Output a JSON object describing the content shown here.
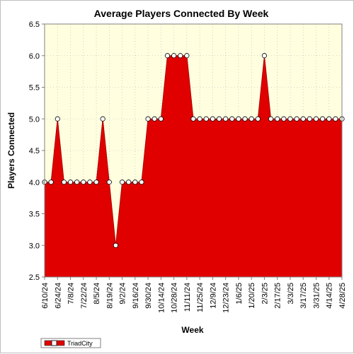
{
  "chart_data": {
    "type": "area",
    "title": "Average Players Connected By Week",
    "xlabel": "Week",
    "ylabel": "Players Connected",
    "ylim": [
      2.5,
      6.5
    ],
    "yticks": [
      "2.5",
      "3.0",
      "3.5",
      "4.0",
      "4.5",
      "5.0",
      "5.5",
      "6.0",
      "6.5"
    ],
    "grid": true,
    "legend_position": "bottom-left",
    "x_tick_labels": [
      "6/10/24",
      "6/24/24",
      "7/8/24",
      "7/22/24",
      "8/5/24",
      "8/19/24",
      "9/2/24",
      "9/16/24",
      "9/30/24",
      "10/14/24",
      "10/28/24",
      "11/11/24",
      "11/25/24",
      "12/9/24",
      "12/23/24",
      "1/6/25",
      "1/20/25",
      "2/3/25",
      "2/17/25",
      "3/3/25",
      "3/17/25",
      "3/31/25",
      "4/14/25",
      "4/28/25"
    ],
    "x": [
      "6/10/24",
      "6/17/24",
      "6/24/24",
      "7/1/24",
      "7/8/24",
      "7/15/24",
      "7/22/24",
      "7/29/24",
      "8/5/24",
      "8/12/24",
      "8/19/24",
      "8/26/24",
      "9/2/24",
      "9/9/24",
      "9/16/24",
      "9/23/24",
      "9/30/24",
      "10/7/24",
      "10/14/24",
      "10/21/24",
      "10/28/24",
      "11/4/24",
      "11/11/24",
      "11/18/24",
      "11/25/24",
      "12/2/24",
      "12/9/24",
      "12/16/24",
      "12/23/24",
      "12/30/24",
      "1/6/25",
      "1/13/25",
      "1/20/25",
      "1/27/25",
      "2/3/25",
      "2/10/25",
      "2/17/25",
      "2/24/25",
      "3/3/25",
      "3/10/25",
      "3/17/25",
      "3/24/25",
      "3/31/25",
      "4/7/25",
      "4/14/25",
      "4/21/25",
      "4/28/25"
    ],
    "series": [
      {
        "name": "TriadCity",
        "color": "#e00000",
        "values": [
          4,
          4,
          5,
          4,
          4,
          4,
          4,
          4,
          4,
          5,
          4,
          3,
          4,
          4,
          4,
          4,
          5,
          5,
          5,
          6,
          6,
          6,
          6,
          5,
          5,
          5,
          5,
          5,
          5,
          5,
          5,
          5,
          5,
          5,
          6,
          5,
          5,
          5,
          5,
          5,
          5,
          5,
          5,
          5,
          5,
          5,
          5
        ]
      }
    ],
    "colors": {
      "plot_background": "#ffffe0",
      "gridline": "#b0b0b0",
      "marker_fill": "#ffffff",
      "marker_stroke": "#000000"
    }
  }
}
